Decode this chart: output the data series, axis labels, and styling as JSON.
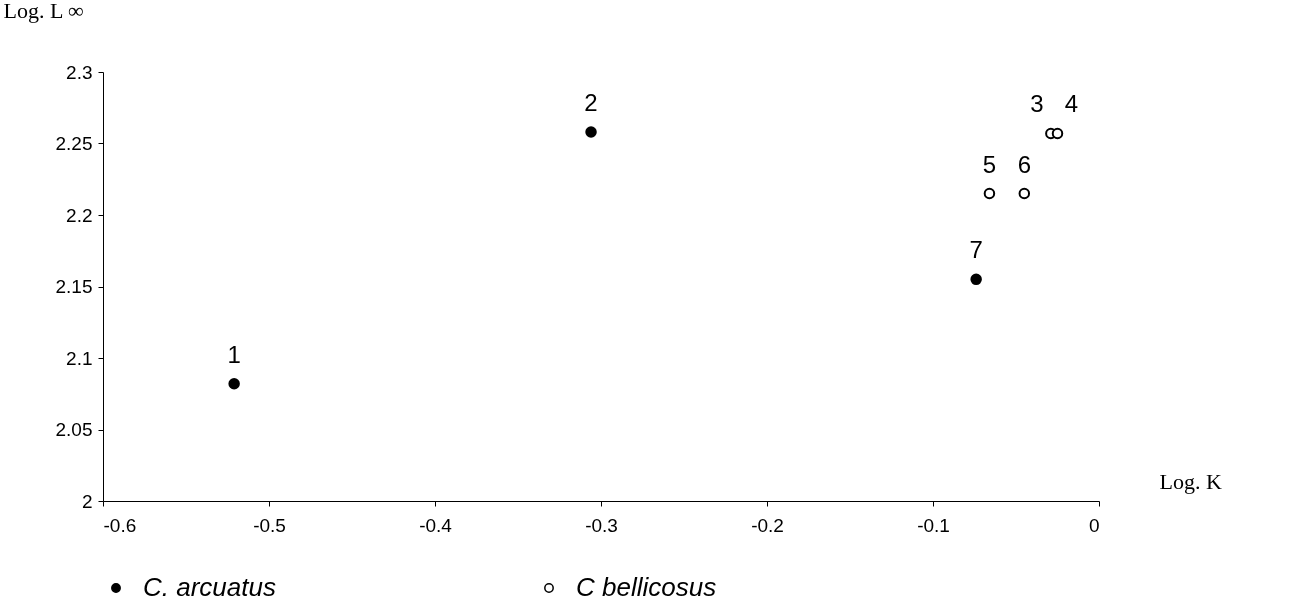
{
  "chart_data": {
    "type": "scatter",
    "xlabel": "Log. K",
    "ylabel": "Log. L ∞",
    "xlim": [
      -0.6,
      0
    ],
    "xticks": [
      -0.6,
      -0.5,
      -0.4,
      -0.3,
      -0.2,
      -0.1,
      0
    ],
    "ylim": [
      2,
      2.3
    ],
    "yticks": [
      2,
      2.05,
      2.1,
      2.15,
      2.2,
      2.25,
      2.3
    ],
    "series": [
      {
        "name": "C. arcuatus",
        "color": "#000000",
        "x": [
          -0.521,
          -0.306,
          -0.074
        ],
        "values": [
          2.082,
          2.258,
          2.155
        ]
      },
      {
        "name": "C bellicosus",
        "color": "#000000",
        "x": [
          -0.029,
          -0.025,
          -0.066,
          -0.045
        ],
        "values": [
          2.257,
          2.257,
          2.215,
          2.215
        ]
      }
    ],
    "annotations": [
      {
        "text": "1",
        "x": -0.521,
        "y": 2.082
      },
      {
        "text": "2",
        "x": -0.306,
        "y": 2.258
      },
      {
        "text": "3",
        "x": -0.029,
        "y": 2.257
      },
      {
        "text": "4",
        "x": -0.025,
        "y": 2.257
      },
      {
        "text": "5",
        "x": -0.066,
        "y": 2.215
      },
      {
        "text": "6",
        "x": -0.045,
        "y": 2.215
      },
      {
        "text": "7",
        "x": -0.074,
        "y": 2.155
      }
    ],
    "marker": "circle",
    "grid": false,
    "legend": "bottom"
  }
}
